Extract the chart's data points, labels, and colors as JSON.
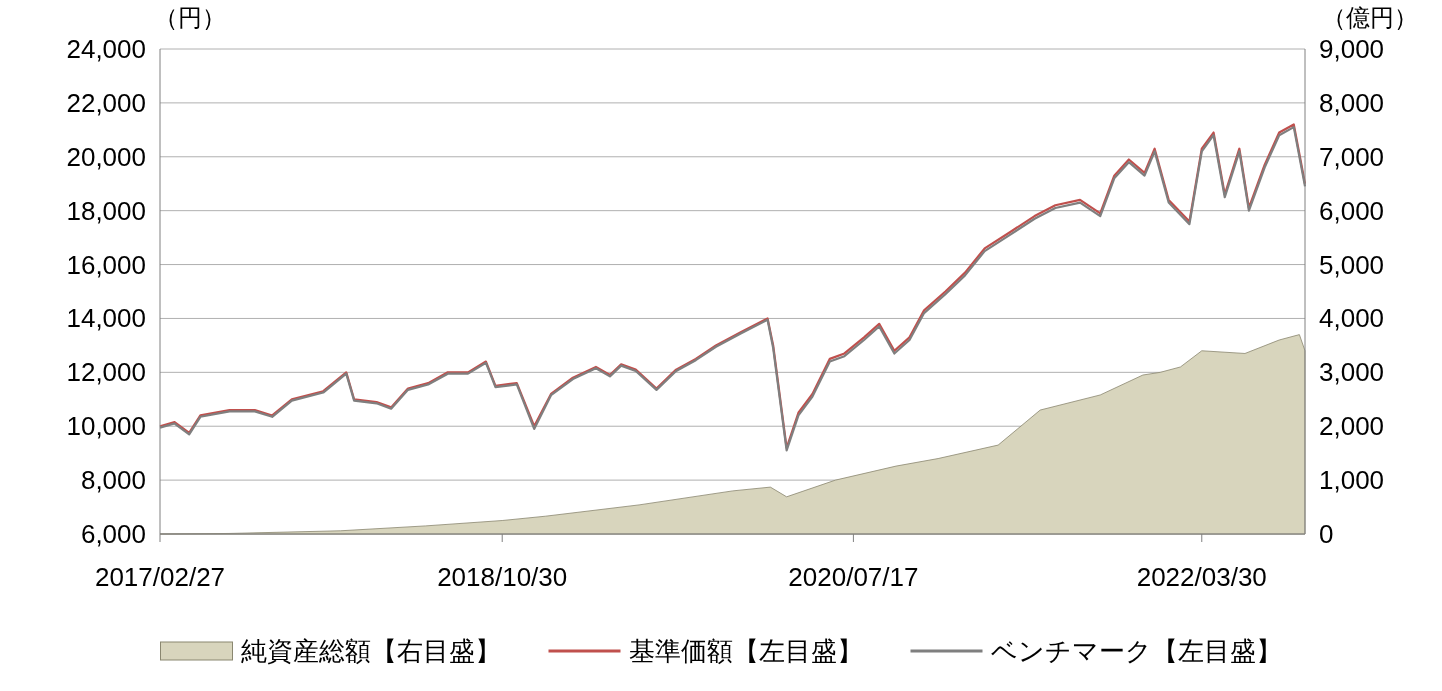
{
  "chart_data": {
    "type": "line",
    "ylabel": "（円）",
    "y2label": "（億円）",
    "legend": "bottom",
    "grid": "y",
    "xlim": [
      "2017-02-27",
      "2022-09-30"
    ],
    "xticks": [
      {
        "value": "2017-02-27",
        "label": "2017/02/27"
      },
      {
        "value": "2018-10-30",
        "label": "2018/10/30"
      },
      {
        "value": "2020-07-17",
        "label": "2020/07/17"
      },
      {
        "value": "2022-03-30",
        "label": "2022/03/30"
      }
    ],
    "ylim": [
      6000,
      24000
    ],
    "yticks": [
      {
        "value": 6000,
        "label": "6,000"
      },
      {
        "value": 8000,
        "label": "8,000"
      },
      {
        "value": 10000,
        "label": "10,000"
      },
      {
        "value": 12000,
        "label": "12,000"
      },
      {
        "value": 14000,
        "label": "14,000"
      },
      {
        "value": 16000,
        "label": "16,000"
      },
      {
        "value": 18000,
        "label": "18,000"
      },
      {
        "value": 20000,
        "label": "20,000"
      },
      {
        "value": 22000,
        "label": "22,000"
      },
      {
        "value": 24000,
        "label": "24,000"
      }
    ],
    "y2lim": [
      0,
      9000
    ],
    "y2ticks": [
      0,
      {
        "value": 1000,
        "label": "1,000"
      },
      {
        "value": 2000,
        "label": "2,000"
      },
      {
        "value": 3000,
        "label": "3,000"
      },
      {
        "value": 4000,
        "label": "4,000"
      },
      {
        "value": 5000,
        "label": "5,000"
      },
      {
        "value": 6000,
        "label": "6,000"
      },
      {
        "value": 7000,
        "label": "7,000"
      },
      {
        "value": 8000,
        "label": "8,000"
      },
      {
        "value": 9000,
        "label": "9,000"
      }
    ],
    "series": [
      {
        "name": "純資産総額【右目盛】",
        "type": "area",
        "axis": "y2",
        "color": "#d8d5bd",
        "x": [
          "2017-02-27",
          "2017-06-30",
          "2018-01-15",
          "2018-06-15",
          "2018-10-30",
          "2019-01-15",
          "2019-07-01",
          "2019-12-15",
          "2020-02-20",
          "2020-03-20",
          "2020-06-15",
          "2020-10-01",
          "2020-12-15",
          "2021-04-01",
          "2021-06-15",
          "2021-09-30",
          "2021-12-15",
          "2022-01-15",
          "2022-02-20",
          "2022-03-30",
          "2022-06-15",
          "2022-08-15",
          "2022-09-20",
          "2022-09-30"
        ],
        "values": [
          0,
          10,
          60,
          150,
          250,
          330,
          540,
          800,
          870,
          690,
          1000,
          1260,
          1400,
          1650,
          2300,
          2580,
          2950,
          3000,
          3100,
          3400,
          3350,
          3600,
          3700,
          3400
        ]
      },
      {
        "name": "基準価額【左目盛】",
        "color": "#c0504d",
        "x": [
          "2017-02-27",
          "2017-03-25",
          "2017-04-20",
          "2017-05-10",
          "2017-07-01",
          "2017-08-15",
          "2017-09-15",
          "2017-10-20",
          "2017-12-15",
          "2018-01-25",
          "2018-02-08",
          "2018-03-20",
          "2018-04-15",
          "2018-05-15",
          "2018-06-20",
          "2018-07-25",
          "2018-08-30",
          "2018-10-01",
          "2018-10-18",
          "2018-11-25",
          "2018-12-26",
          "2019-01-25",
          "2019-03-05",
          "2019-04-15",
          "2019-05-10",
          "2019-05-30",
          "2019-06-25",
          "2019-08-01",
          "2019-09-05",
          "2019-10-10",
          "2019-11-15",
          "2019-12-30",
          "2020-02-15",
          "2020-02-25",
          "2020-03-20",
          "2020-04-10",
          "2020-05-05",
          "2020-06-05",
          "2020-07-01",
          "2020-08-05",
          "2020-09-01",
          "2020-09-28",
          "2020-10-25",
          "2020-11-20",
          "2020-12-28",
          "2021-02-01",
          "2021-03-08",
          "2021-04-22",
          "2021-06-05",
          "2021-07-12",
          "2021-08-25",
          "2021-09-30",
          "2021-10-25",
          "2021-11-20",
          "2021-12-18",
          "2022-01-05",
          "2022-01-30",
          "2022-03-08",
          "2022-03-30",
          "2022-04-20",
          "2022-05-10",
          "2022-06-05",
          "2022-06-22",
          "2022-07-20",
          "2022-08-15",
          "2022-09-10",
          "2022-09-30"
        ],
        "values": [
          10000,
          10150,
          9750,
          10400,
          10600,
          10600,
          10400,
          11000,
          11300,
          12000,
          11000,
          10900,
          10700,
          11400,
          11600,
          12000,
          12000,
          12400,
          11500,
          11600,
          10000,
          11200,
          11800,
          12200,
          11900,
          12300,
          12100,
          11400,
          12100,
          12500,
          13000,
          13500,
          14000,
          13000,
          9200,
          10500,
          11200,
          12500,
          12700,
          13300,
          13800,
          12800,
          13300,
          14300,
          15000,
          15700,
          16600,
          17200,
          17800,
          18200,
          18400,
          17900,
          19300,
          19900,
          19400,
          20300,
          18400,
          17600,
          20300,
          20900,
          18600,
          20300,
          18100,
          19700,
          20900,
          21200,
          19000
        ]
      },
      {
        "name": "ベンチマーク【左目盛】",
        "color": "#7f7f7f",
        "x": [
          "2017-02-27",
          "2017-03-25",
          "2017-04-20",
          "2017-05-10",
          "2017-07-01",
          "2017-08-15",
          "2017-09-15",
          "2017-10-20",
          "2017-12-15",
          "2018-01-25",
          "2018-02-08",
          "2018-03-20",
          "2018-04-15",
          "2018-05-15",
          "2018-06-20",
          "2018-07-25",
          "2018-08-30",
          "2018-10-01",
          "2018-10-18",
          "2018-11-25",
          "2018-12-26",
          "2019-01-25",
          "2019-03-05",
          "2019-04-15",
          "2019-05-10",
          "2019-05-30",
          "2019-06-25",
          "2019-08-01",
          "2019-09-05",
          "2019-10-10",
          "2019-11-15",
          "2019-12-30",
          "2020-02-15",
          "2020-02-25",
          "2020-03-20",
          "2020-04-10",
          "2020-05-05",
          "2020-06-05",
          "2020-07-01",
          "2020-08-05",
          "2020-09-01",
          "2020-09-28",
          "2020-10-25",
          "2020-11-20",
          "2020-12-28",
          "2021-02-01",
          "2021-03-08",
          "2021-04-22",
          "2021-06-05",
          "2021-07-12",
          "2021-08-25",
          "2021-09-30",
          "2021-10-25",
          "2021-11-20",
          "2021-12-18",
          "2022-01-05",
          "2022-01-30",
          "2022-03-08",
          "2022-03-30",
          "2022-04-20",
          "2022-05-10",
          "2022-06-05",
          "2022-06-22",
          "2022-07-20",
          "2022-08-15",
          "2022-09-10",
          "2022-09-30"
        ],
        "values": [
          9950,
          10100,
          9700,
          10350,
          10550,
          10550,
          10350,
          10950,
          11250,
          11950,
          10950,
          10850,
          10650,
          11350,
          11550,
          11950,
          11950,
          12350,
          11450,
          11550,
          9900,
          11150,
          11750,
          12150,
          11850,
          12250,
          12050,
          11350,
          12050,
          12450,
          12950,
          13450,
          13950,
          12900,
          9100,
          10400,
          11100,
          12400,
          12600,
          13200,
          13700,
          12700,
          13200,
          14200,
          14900,
          15600,
          16500,
          17100,
          17700,
          18100,
          18300,
          17800,
          19200,
          19800,
          19300,
          20200,
          18300,
          17500,
          20200,
          20800,
          18500,
          20200,
          18000,
          19600,
          20800,
          21100,
          18900
        ]
      }
    ]
  }
}
